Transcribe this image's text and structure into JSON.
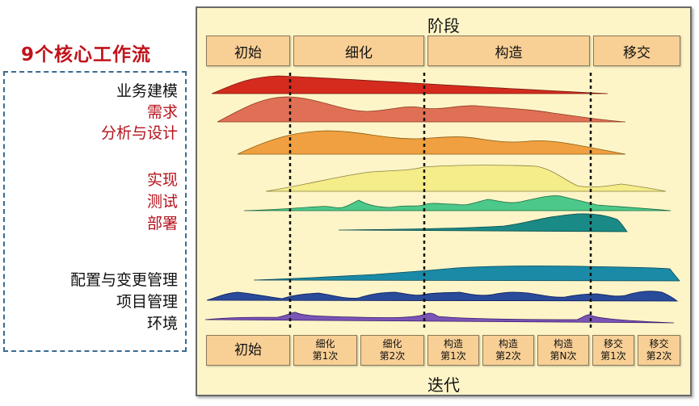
{
  "title": "9个核心工作流",
  "workflows": [
    {
      "label": "业务建模",
      "color": "black"
    },
    {
      "label": "需求",
      "color": "red"
    },
    {
      "label": "分析与设计",
      "color": "red"
    },
    {
      "label": "实现",
      "color": "red"
    },
    {
      "label": "测试",
      "color": "red"
    },
    {
      "label": "部署",
      "color": "red"
    },
    {
      "label": "配置与变更管理",
      "color": "black"
    },
    {
      "label": "项目管理",
      "color": "black"
    },
    {
      "label": "环境",
      "color": "black"
    }
  ],
  "panel": {
    "phase_header": "阶段",
    "iteration_footer": "迭代",
    "phases": [
      "初始",
      "细化",
      "构造",
      "移交"
    ],
    "iterations": [
      {
        "line1": "初始",
        "line2": ""
      },
      {
        "line1": "细化",
        "line2": "第1次"
      },
      {
        "line1": "细化",
        "line2": "第2次"
      },
      {
        "line1": "构造",
        "line2": "第1次"
      },
      {
        "line1": "构造",
        "line2": "第2次"
      },
      {
        "line1": "构造",
        "line2": "第N次"
      },
      {
        "line1": "移交",
        "line2": "第1次"
      },
      {
        "line1": "移交",
        "line2": "第2次"
      }
    ]
  },
  "colors": {
    "business_modeling": "#d42b1e",
    "requirements": "#e07055",
    "analysis_design": "#f0a040",
    "implementation": "#f5ec8a",
    "test": "#4cc98a",
    "deployment": "#1a8a86",
    "config_change": "#1a8aa6",
    "project_mgmt": "#2a4a9a",
    "environment": "#7a55b5"
  }
}
